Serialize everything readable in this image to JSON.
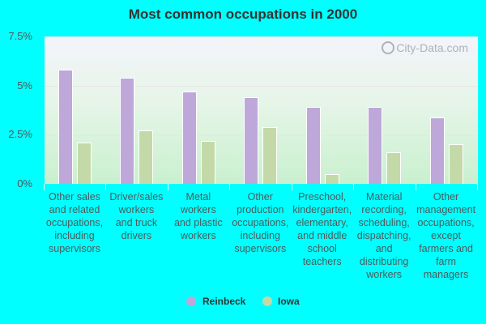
{
  "title": "Most common occupations in 2000",
  "watermark": "City-Data.com",
  "colors": {
    "reinbeck": "#bea8da",
    "iowa": "#c4d9a8",
    "background": "#00ffff"
  },
  "legend": [
    {
      "label": "Reinbeck",
      "color": "#bea8da"
    },
    {
      "label": "Iowa",
      "color": "#c4d9a8"
    }
  ],
  "y_ticks": [
    "7.5%",
    "5%",
    "2.5%",
    "0%"
  ],
  "categories": [
    "Other sales and related occupations, including supervisors",
    "Driver/sales workers and truck drivers",
    "Metal workers and plastic workers",
    "Other production occupations, including supervisors",
    "Preschool, kindergarten, elementary, and middle school teachers",
    "Material recording, scheduling, dispatching, and distributing workers",
    "Other management occupations, except farmers and farm managers"
  ],
  "category_lines": [
    [
      "Other sales",
      "and related",
      "occupations,",
      "including",
      "supervisors"
    ],
    [
      "Driver/sales",
      "workers",
      "and truck",
      "drivers"
    ],
    [
      "Metal",
      "workers",
      "and plastic",
      "workers"
    ],
    [
      "Other",
      "production",
      "occupations,",
      "including",
      "supervisors"
    ],
    [
      "Preschool,",
      "kindergarten,",
      "elementary,",
      "and middle",
      "school",
      "teachers"
    ],
    [
      "Material",
      "recording,",
      "scheduling,",
      "dispatching,",
      "and",
      "distributing",
      "workers"
    ],
    [
      "Other",
      "management",
      "occupations,",
      "except",
      "farmers and",
      "farm",
      "managers"
    ]
  ],
  "chart_data": {
    "type": "bar",
    "title": "Most common occupations in 2000",
    "xlabel": "",
    "ylabel": "",
    "ylim": [
      0,
      7.5
    ],
    "y_tick_values": [
      0,
      2.5,
      5,
      7.5
    ],
    "y_tick_format": "%",
    "grid": true,
    "legend_position": "bottom",
    "categories": [
      "Other sales and related occupations, including supervisors",
      "Driver/sales workers and truck drivers",
      "Metal workers and plastic workers",
      "Other production occupations, including supervisors",
      "Preschool, kindergarten, elementary, and middle school teachers",
      "Material recording, scheduling, dispatching, and distributing workers",
      "Other management occupations, except farmers and farm managers"
    ],
    "series": [
      {
        "name": "Reinbeck",
        "color": "#bea8da",
        "values": [
          5.8,
          5.4,
          4.7,
          4.4,
          3.9,
          3.9,
          3.4
        ]
      },
      {
        "name": "Iowa",
        "color": "#c4d9a8",
        "values": [
          2.1,
          2.7,
          2.2,
          2.9,
          0.5,
          1.6,
          2.0
        ]
      }
    ]
  }
}
